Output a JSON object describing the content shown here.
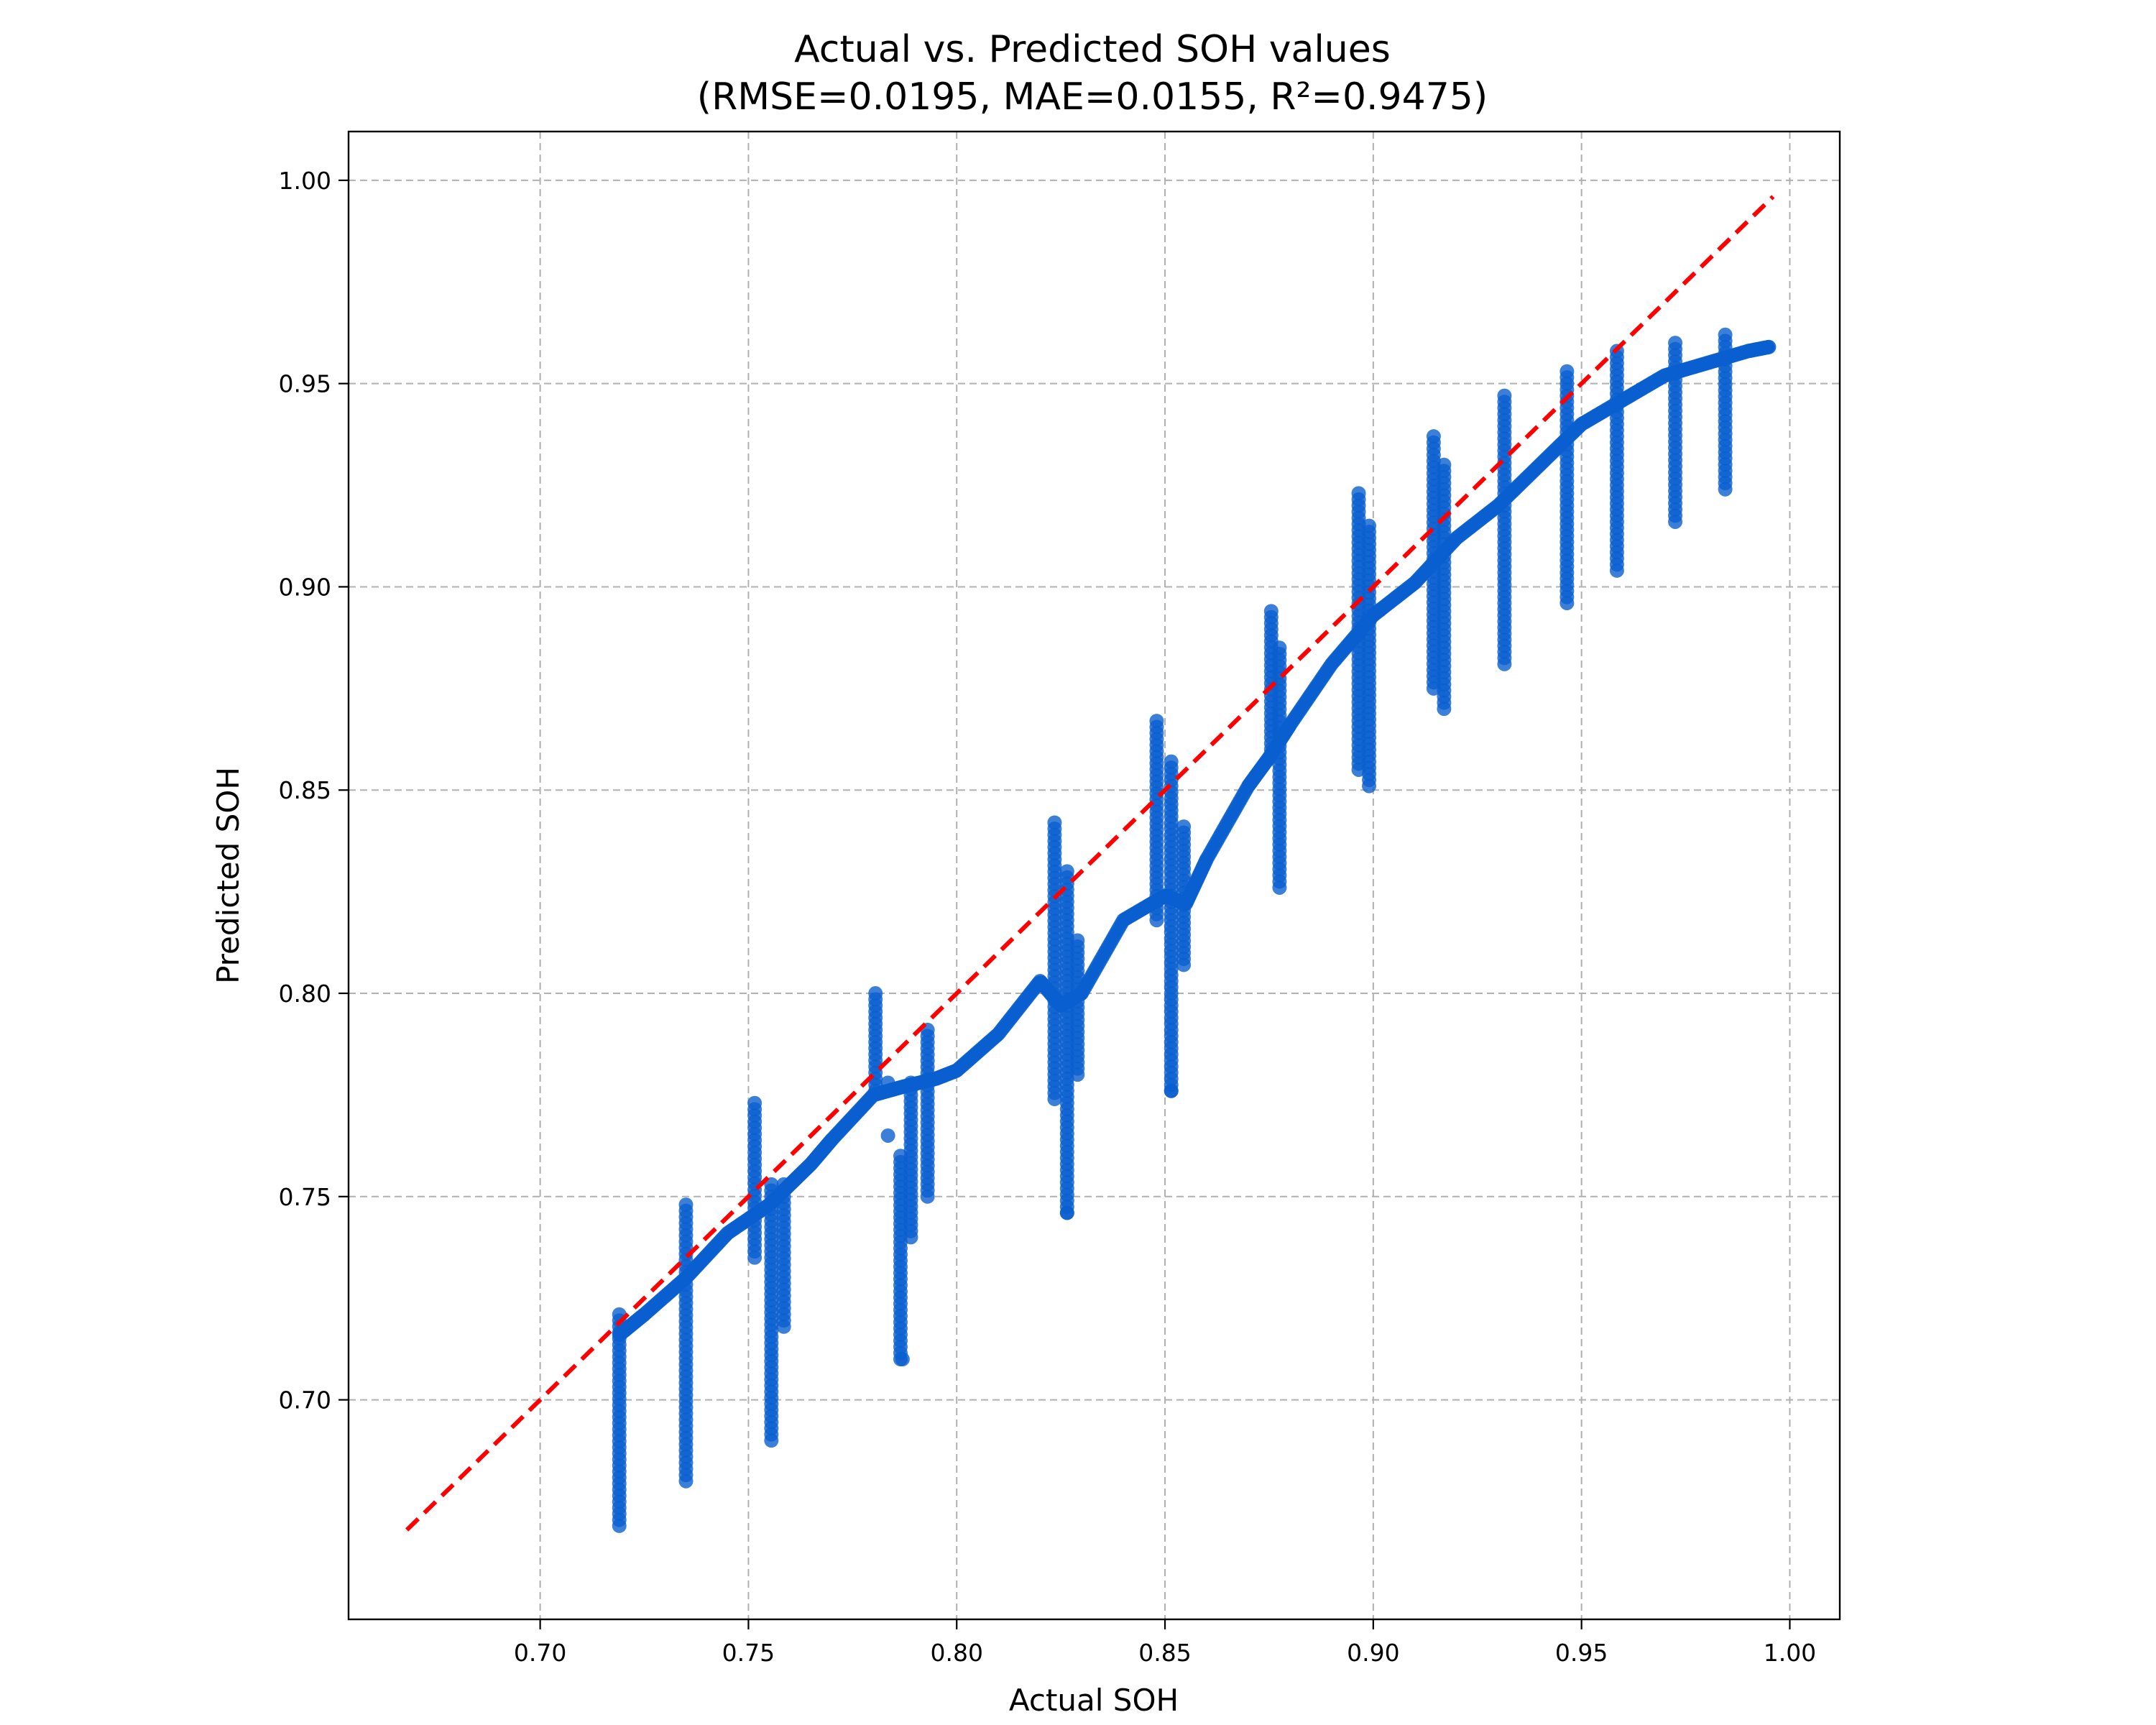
{
  "chart_data": {
    "type": "scatter",
    "title": "Actual vs. Predicted SOH values",
    "subtitle": "(RMSE=0.0195, MAE=0.0155,  R²=0.9475)",
    "xlabel": "Actual SOH",
    "ylabel": "Predicted SOH",
    "xlim": [
      0.654,
      1.012
    ],
    "ylim": [
      0.646,
      1.012
    ],
    "xticks": [
      0.7,
      0.75,
      0.8,
      0.85,
      0.9,
      0.95,
      1.0
    ],
    "xtick_labels": [
      "0.70",
      "0.75",
      "0.80",
      "0.85",
      "0.90",
      "0.95",
      "1.00"
    ],
    "yticks": [
      0.7,
      0.75,
      0.8,
      0.85,
      0.9,
      0.95,
      1.0
    ],
    "ytick_labels": [
      "0.70",
      "0.75",
      "0.80",
      "0.85",
      "0.90",
      "0.95",
      "1.00"
    ],
    "grid": true,
    "colors": {
      "points": "#0a5fcf",
      "reference": "#ff0000"
    },
    "reference_line": {
      "x": [
        0.668,
        0.996
      ],
      "y": [
        0.668,
        0.996
      ],
      "style": "dashed"
    },
    "trend": {
      "x": [
        0.719,
        0.725,
        0.735,
        0.745,
        0.755,
        0.76,
        0.765,
        0.77,
        0.78,
        0.787,
        0.795,
        0.8,
        0.81,
        0.82,
        0.825,
        0.83,
        0.84,
        0.85,
        0.855,
        0.86,
        0.87,
        0.875,
        0.88,
        0.89,
        0.9,
        0.91,
        0.92,
        0.93,
        0.94,
        0.95,
        0.96,
        0.97,
        0.98,
        0.99,
        0.995
      ],
      "y": [
        0.716,
        0.721,
        0.73,
        0.741,
        0.748,
        0.753,
        0.758,
        0.764,
        0.775,
        0.777,
        0.779,
        0.781,
        0.79,
        0.803,
        0.797,
        0.8,
        0.818,
        0.824,
        0.822,
        0.833,
        0.851,
        0.858,
        0.866,
        0.881,
        0.893,
        0.901,
        0.912,
        0.92,
        0.93,
        0.94,
        0.946,
        0.952,
        0.955,
        0.958,
        0.959
      ]
    },
    "vertical_bands": [
      {
        "x": 0.719,
        "y_min": 0.669,
        "y_max": 0.721
      },
      {
        "x": 0.735,
        "y_min": 0.68,
        "y_max": 0.748
      },
      {
        "x": 0.7515,
        "y_min": 0.735,
        "y_max": 0.773
      },
      {
        "x": 0.7555,
        "y_min": 0.69,
        "y_max": 0.753
      },
      {
        "x": 0.7585,
        "y_min": 0.718,
        "y_max": 0.753
      },
      {
        "x": 0.7805,
        "y_min": 0.776,
        "y_max": 0.8
      },
      {
        "x": 0.7865,
        "y_min": 0.71,
        "y_max": 0.76
      },
      {
        "x": 0.789,
        "y_min": 0.74,
        "y_max": 0.778
      },
      {
        "x": 0.793,
        "y_min": 0.75,
        "y_max": 0.791
      },
      {
        "x": 0.8235,
        "y_min": 0.774,
        "y_max": 0.842
      },
      {
        "x": 0.8265,
        "y_min": 0.746,
        "y_max": 0.83
      },
      {
        "x": 0.829,
        "y_min": 0.78,
        "y_max": 0.813
      },
      {
        "x": 0.848,
        "y_min": 0.818,
        "y_max": 0.867
      },
      {
        "x": 0.8515,
        "y_min": 0.776,
        "y_max": 0.857
      },
      {
        "x": 0.8545,
        "y_min": 0.807,
        "y_max": 0.841
      },
      {
        "x": 0.8755,
        "y_min": 0.86,
        "y_max": 0.894
      },
      {
        "x": 0.8775,
        "y_min": 0.826,
        "y_max": 0.885
      },
      {
        "x": 0.8965,
        "y_min": 0.855,
        "y_max": 0.923
      },
      {
        "x": 0.899,
        "y_min": 0.851,
        "y_max": 0.915
      },
      {
        "x": 0.9145,
        "y_min": 0.875,
        "y_max": 0.937
      },
      {
        "x": 0.917,
        "y_min": 0.87,
        "y_max": 0.93
      },
      {
        "x": 0.9315,
        "y_min": 0.881,
        "y_max": 0.947
      },
      {
        "x": 0.9465,
        "y_min": 0.896,
        "y_max": 0.953
      },
      {
        "x": 0.9585,
        "y_min": 0.904,
        "y_max": 0.958
      },
      {
        "x": 0.9725,
        "y_min": 0.916,
        "y_max": 0.96
      },
      {
        "x": 0.9845,
        "y_min": 0.924,
        "y_max": 0.962
      }
    ],
    "outliers": [
      {
        "x": 0.7835,
        "y": 0.765
      },
      {
        "x": 0.7835,
        "y": 0.778
      },
      {
        "x": 0.8265,
        "y": 0.746
      },
      {
        "x": 0.8515,
        "y": 0.776
      },
      {
        "x": 0.787,
        "y": 0.71
      }
    ]
  }
}
